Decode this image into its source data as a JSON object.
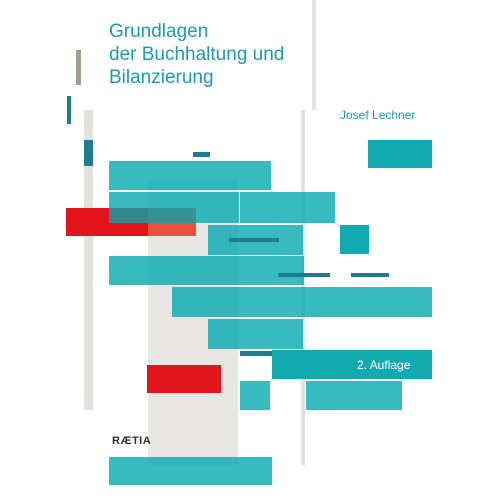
{
  "book": {
    "title_lines": [
      "Grundlagen",
      "der Buchhaltung und",
      "Bilanzierung"
    ],
    "author": "Josef Lechner",
    "edition": "2. Auflage",
    "publisher": "RÆTIA"
  },
  "colors": {
    "accent_teal": "#13a9b1",
    "dark_teal": "#1d7d8f",
    "red": "#e4141c",
    "grey": "#e8e6e2",
    "title_text": "#1a9cab"
  }
}
